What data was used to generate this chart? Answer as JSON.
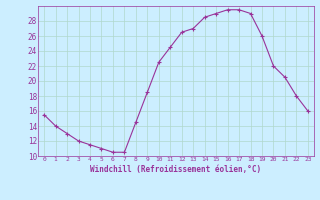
{
  "x": [
    0,
    1,
    2,
    3,
    4,
    5,
    6,
    7,
    8,
    9,
    10,
    11,
    12,
    13,
    14,
    15,
    16,
    17,
    18,
    19,
    20,
    21,
    22,
    23
  ],
  "y": [
    15.5,
    14.0,
    13.0,
    12.0,
    11.5,
    11.0,
    10.5,
    10.5,
    14.5,
    18.5,
    22.5,
    24.5,
    26.5,
    27.0,
    28.5,
    29.0,
    29.5,
    29.5,
    29.0,
    26.0,
    22.0,
    20.5,
    18.0,
    16.0
  ],
  "line_color": "#993399",
  "marker": "+",
  "marker_size": 3,
  "bg_color": "#cceeff",
  "grid_color": "#aaddcc",
  "xlabel": "Windchill (Refroidissement éolien,°C)",
  "xlabel_color": "#993399",
  "tick_color": "#993399",
  "ylim": [
    10,
    30
  ],
  "xlim_min": -0.5,
  "xlim_max": 23.5,
  "yticks": [
    10,
    12,
    14,
    16,
    18,
    20,
    22,
    24,
    26,
    28
  ],
  "xticks": [
    0,
    1,
    2,
    3,
    4,
    5,
    6,
    7,
    8,
    9,
    10,
    11,
    12,
    13,
    14,
    15,
    16,
    17,
    18,
    19,
    20,
    21,
    22,
    23
  ],
  "xtick_labels": [
    "0",
    "1",
    "2",
    "3",
    "4",
    "5",
    "6",
    "7",
    "8",
    "9",
    "10",
    "11",
    "12",
    "13",
    "14",
    "15",
    "16",
    "17",
    "18",
    "19",
    "20",
    "21",
    "22",
    "23"
  ]
}
